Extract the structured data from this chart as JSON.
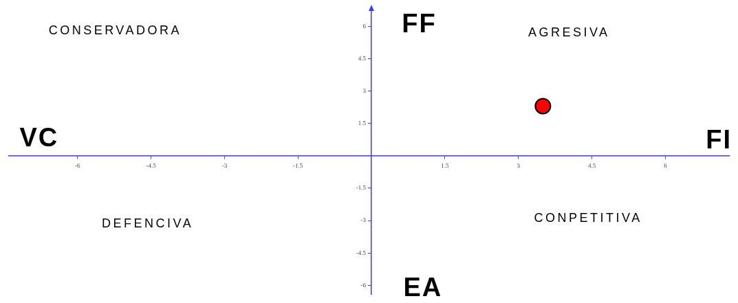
{
  "chart_data": {
    "type": "scatter",
    "x": [
      3.5
    ],
    "values": [
      2.3
    ],
    "color": "#ff0000",
    "marker": "circle",
    "xlim": [
      -7.4,
      7.3
    ],
    "ylim": [
      -6.4,
      6.8
    ],
    "xticks": [
      -6,
      -4.5,
      -3,
      -1.5,
      1.5,
      3,
      4.5,
      6
    ],
    "yticks": [
      -6,
      -4.5,
      -3,
      -1.5,
      1.5,
      3,
      4.5,
      6
    ],
    "annotations": [
      "FF",
      "CONSERVADORA",
      "AGRESIVA",
      "VC",
      "FI",
      "DEFENCIVA",
      "CONPETITIVA",
      "EA"
    ]
  }
}
